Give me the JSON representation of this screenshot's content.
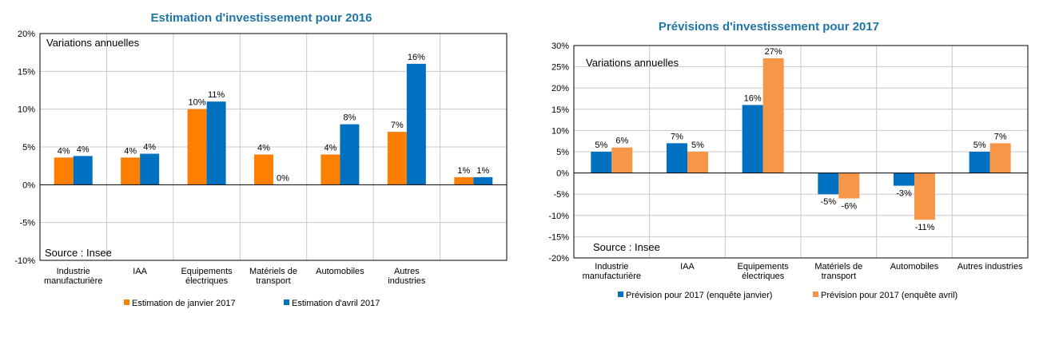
{
  "chart_data": [
    {
      "type": "bar",
      "title": "Estimation d'investissement pour 2016",
      "subtitle": "Variations annuelles",
      "source": "Source : Insee",
      "colors": [
        "#ff7f00",
        "#0070c0"
      ],
      "categories": [
        [
          "Industrie",
          "manufacturière"
        ],
        [
          "IAA"
        ],
        [
          "Equipements",
          "électriques"
        ],
        [
          "Matériels de",
          "transport"
        ],
        [
          "Automobiles"
        ],
        [
          "Autres",
          "industries"
        ],
        [
          ""
        ]
      ],
      "series": [
        {
          "name": "Estimation de janvier 2017",
          "values": [
            3.6,
            3.6,
            10,
            4,
            4,
            7,
            1
          ],
          "labels": [
            "4%",
            "4%",
            "10%",
            "4%",
            "4%",
            "7%",
            "1%"
          ]
        },
        {
          "name": "Estimation d'avril 2017",
          "values": [
            3.8,
            4.1,
            11,
            0,
            8,
            16,
            1
          ],
          "labels": [
            "4%",
            "4%",
            "11%",
            "0%",
            "8%",
            "16%",
            "1%"
          ]
        }
      ],
      "ylim": [
        -10,
        20
      ],
      "yticks": [
        -10,
        -5,
        0,
        5,
        10,
        15,
        20
      ],
      "ytick_labels": [
        "-10%",
        "-5%",
        "0%",
        "5%",
        "10%",
        "15%",
        "20%"
      ],
      "grid": true,
      "legend": "bottom"
    },
    {
      "type": "bar",
      "title": "Prévisions d'investissement pour 2017",
      "subtitle": "Variations annuelles",
      "source": "Source : Insee",
      "colors": [
        "#0070c0",
        "#f79646"
      ],
      "categories": [
        [
          "Industrie",
          "manufacturière"
        ],
        [
          "IAA"
        ],
        [
          "Equipements",
          "électriques"
        ],
        [
          "Matériels de",
          "transport"
        ],
        [
          "Automobiles"
        ],
        [
          "Autres industries"
        ]
      ],
      "series": [
        {
          "name": "Prévision pour 2017 (enquête janvier)",
          "values": [
            5,
            7,
            16,
            -5,
            -3,
            5
          ],
          "labels": [
            "5%",
            "7%",
            "16%",
            "-5%",
            "-3%",
            "5%"
          ]
        },
        {
          "name": "Prévision pour 2017 (enquête avril)",
          "values": [
            6,
            5,
            27,
            -6,
            -11,
            7
          ],
          "labels": [
            "6%",
            "5%",
            "27%",
            "-6%",
            "-11%",
            "7%"
          ]
        }
      ],
      "ylim": [
        -20,
        30
      ],
      "yticks": [
        -20,
        -15,
        -10,
        -5,
        0,
        5,
        10,
        15,
        20,
        25,
        30
      ],
      "ytick_labels": [
        "-20%",
        "-15%",
        "-10%",
        "-5%",
        "0%",
        "5%",
        "10%",
        "15%",
        "20%",
        "25%",
        "30%"
      ],
      "grid": true,
      "legend": "bottom"
    }
  ]
}
